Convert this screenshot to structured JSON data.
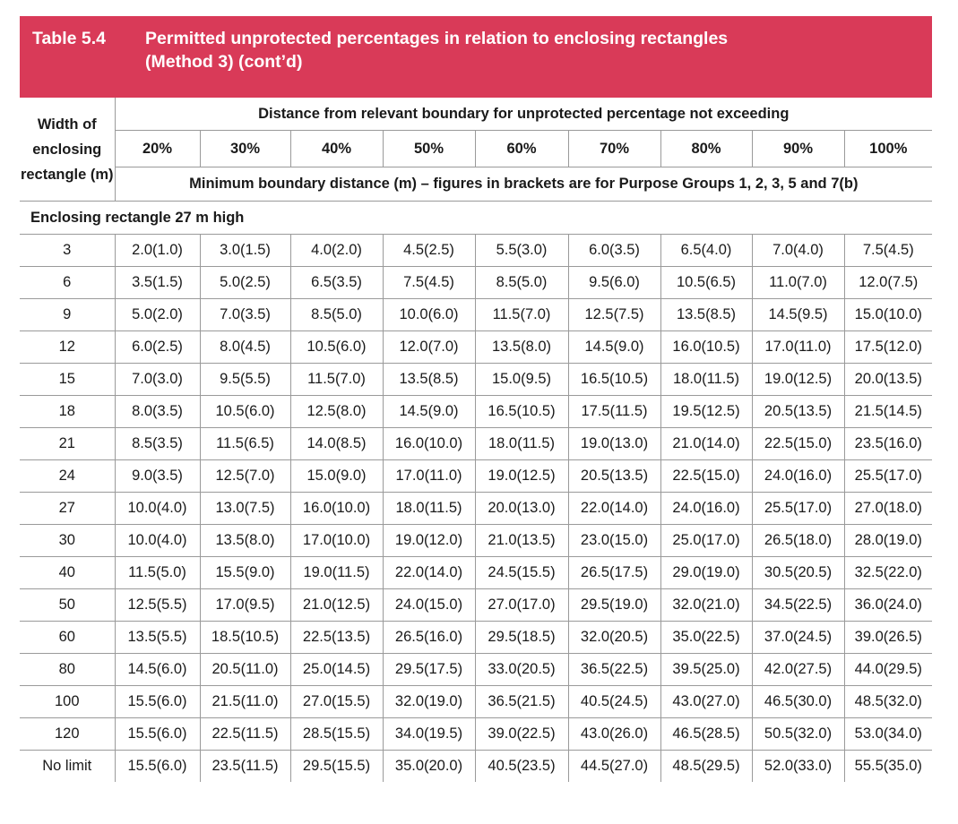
{
  "title": {
    "number": "Table 5.4",
    "line1": "Permitted unprotected percentages in relation to enclosing rectangles",
    "line2": "(Method 3) (cont’d)"
  },
  "header": {
    "width_col": "Width of enclosing rectangle (m)",
    "distance_label": "Distance from relevant boundary for unprotected percentage not exceeding",
    "percentages": [
      "20%",
      "30%",
      "40%",
      "50%",
      "60%",
      "70%",
      "80%",
      "90%",
      "100%"
    ],
    "min_distance_label": "Minimum boundary distance (m) – figures in brackets are for Purpose Groups 1, 2, 3, 5 and 7(b)"
  },
  "section_label": "Enclosing rectangle 27 m high",
  "rows": [
    {
      "width": "3",
      "values": [
        "2.0(1.0)",
        "3.0(1.5)",
        "4.0(2.0)",
        "4.5(2.5)",
        "5.5(3.0)",
        "6.0(3.5)",
        "6.5(4.0)",
        "7.0(4.0)",
        "7.5(4.5)"
      ]
    },
    {
      "width": "6",
      "values": [
        "3.5(1.5)",
        "5.0(2.5)",
        "6.5(3.5)",
        "7.5(4.5)",
        "8.5(5.0)",
        "9.5(6.0)",
        "10.5(6.5)",
        "11.0(7.0)",
        "12.0(7.5)"
      ]
    },
    {
      "width": "9",
      "values": [
        "5.0(2.0)",
        "7.0(3.5)",
        "8.5(5.0)",
        "10.0(6.0)",
        "11.5(7.0)",
        "12.5(7.5)",
        "13.5(8.5)",
        "14.5(9.5)",
        "15.0(10.0)"
      ]
    },
    {
      "width": "12",
      "values": [
        "6.0(2.5)",
        "8.0(4.5)",
        "10.5(6.0)",
        "12.0(7.0)",
        "13.5(8.0)",
        "14.5(9.0)",
        "16.0(10.5)",
        "17.0(11.0)",
        "17.5(12.0)"
      ]
    },
    {
      "width": "15",
      "values": [
        "7.0(3.0)",
        "9.5(5.5)",
        "11.5(7.0)",
        "13.5(8.5)",
        "15.0(9.5)",
        "16.5(10.5)",
        "18.0(11.5)",
        "19.0(12.5)",
        "20.0(13.5)"
      ]
    },
    {
      "width": "18",
      "values": [
        "8.0(3.5)",
        "10.5(6.0)",
        "12.5(8.0)",
        "14.5(9.0)",
        "16.5(10.5)",
        "17.5(11.5)",
        "19.5(12.5)",
        "20.5(13.5)",
        "21.5(14.5)"
      ]
    },
    {
      "width": "21",
      "values": [
        "8.5(3.5)",
        "11.5(6.5)",
        "14.0(8.5)",
        "16.0(10.0)",
        "18.0(11.5)",
        "19.0(13.0)",
        "21.0(14.0)",
        "22.5(15.0)",
        "23.5(16.0)"
      ]
    },
    {
      "width": "24",
      "values": [
        "9.0(3.5)",
        "12.5(7.0)",
        "15.0(9.0)",
        "17.0(11.0)",
        "19.0(12.5)",
        "20.5(13.5)",
        "22.5(15.0)",
        "24.0(16.0)",
        "25.5(17.0)"
      ]
    },
    {
      "width": "27",
      "values": [
        "10.0(4.0)",
        "13.0(7.5)",
        "16.0(10.0)",
        "18.0(11.5)",
        "20.0(13.0)",
        "22.0(14.0)",
        "24.0(16.0)",
        "25.5(17.0)",
        "27.0(18.0)"
      ]
    },
    {
      "width": "30",
      "values": [
        "10.0(4.0)",
        "13.5(8.0)",
        "17.0(10.0)",
        "19.0(12.0)",
        "21.0(13.5)",
        "23.0(15.0)",
        "25.0(17.0)",
        "26.5(18.0)",
        "28.0(19.0)"
      ]
    },
    {
      "width": "40",
      "values": [
        "11.5(5.0)",
        "15.5(9.0)",
        "19.0(11.5)",
        "22.0(14.0)",
        "24.5(15.5)",
        "26.5(17.5)",
        "29.0(19.0)",
        "30.5(20.5)",
        "32.5(22.0)"
      ]
    },
    {
      "width": "50",
      "values": [
        "12.5(5.5)",
        "17.0(9.5)",
        "21.0(12.5)",
        "24.0(15.0)",
        "27.0(17.0)",
        "29.5(19.0)",
        "32.0(21.0)",
        "34.5(22.5)",
        "36.0(24.0)"
      ]
    },
    {
      "width": "60",
      "values": [
        "13.5(5.5)",
        "18.5(10.5)",
        "22.5(13.5)",
        "26.5(16.0)",
        "29.5(18.5)",
        "32.0(20.5)",
        "35.0(22.5)",
        "37.0(24.5)",
        "39.0(26.5)"
      ]
    },
    {
      "width": "80",
      "values": [
        "14.5(6.0)",
        "20.5(11.0)",
        "25.0(14.5)",
        "29.5(17.5)",
        "33.0(20.5)",
        "36.5(22.5)",
        "39.5(25.0)",
        "42.0(27.5)",
        "44.0(29.5)"
      ]
    },
    {
      "width": "100",
      "values": [
        "15.5(6.0)",
        "21.5(11.0)",
        "27.0(15.5)",
        "32.0(19.0)",
        "36.5(21.5)",
        "40.5(24.5)",
        "43.0(27.0)",
        "46.5(30.0)",
        "48.5(32.0)"
      ]
    },
    {
      "width": "120",
      "values": [
        "15.5(6.0)",
        "22.5(11.5)",
        "28.5(15.5)",
        "34.0(19.5)",
        "39.0(22.5)",
        "43.0(26.0)",
        "46.5(28.5)",
        "50.5(32.0)",
        "53.0(34.0)"
      ]
    },
    {
      "width": "No limit",
      "values": [
        "15.5(6.0)",
        "23.5(11.5)",
        "29.5(15.5)",
        "35.0(20.0)",
        "40.5(23.5)",
        "44.5(27.0)",
        "48.5(29.5)",
        "52.0(33.0)",
        "55.5(35.0)"
      ]
    }
  ],
  "colors": {
    "title_bg": "#d93a58",
    "title_text": "#ffffff",
    "grid": "#9a9a9a"
  }
}
